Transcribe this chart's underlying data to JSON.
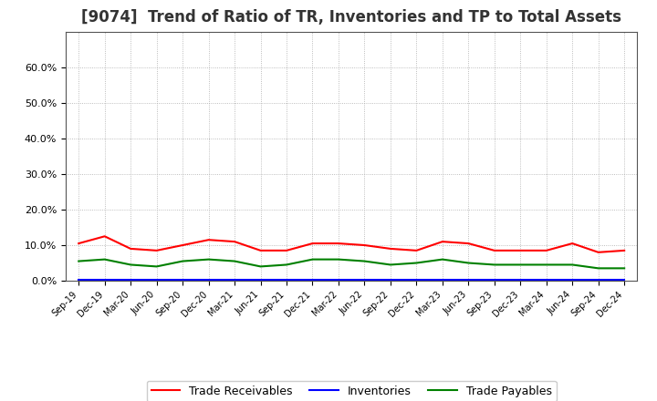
{
  "title": "[9074]  Trend of Ratio of TR, Inventories and TP to Total Assets",
  "x_labels": [
    "Sep-19",
    "Dec-19",
    "Mar-20",
    "Jun-20",
    "Sep-20",
    "Dec-20",
    "Mar-21",
    "Jun-21",
    "Sep-21",
    "Dec-21",
    "Mar-22",
    "Jun-22",
    "Sep-22",
    "Dec-22",
    "Mar-23",
    "Jun-23",
    "Sep-23",
    "Dec-23",
    "Mar-24",
    "Jun-24",
    "Sep-24",
    "Dec-24"
  ],
  "trade_receivables": [
    10.5,
    12.5,
    9.0,
    8.5,
    10.0,
    11.5,
    11.0,
    8.5,
    8.5,
    10.5,
    10.5,
    10.0,
    9.0,
    8.5,
    11.0,
    10.5,
    8.5,
    8.5,
    8.5,
    10.5,
    8.0,
    8.5
  ],
  "inventories": [
    0.3,
    0.3,
    0.3,
    0.3,
    0.3,
    0.3,
    0.3,
    0.3,
    0.3,
    0.3,
    0.3,
    0.3,
    0.3,
    0.3,
    0.3,
    0.3,
    0.3,
    0.3,
    0.3,
    0.3,
    0.3,
    0.3
  ],
  "trade_payables": [
    5.5,
    6.0,
    4.5,
    4.0,
    5.5,
    6.0,
    5.5,
    4.0,
    4.5,
    6.0,
    6.0,
    5.5,
    4.5,
    5.0,
    6.0,
    5.0,
    4.5,
    4.5,
    4.5,
    4.5,
    3.5,
    3.5
  ],
  "ylim": [
    0,
    70
  ],
  "yticks": [
    0,
    10,
    20,
    30,
    40,
    50,
    60
  ],
  "ytick_labels": [
    "0.0%",
    "10.0%",
    "20.0%",
    "30.0%",
    "40.0%",
    "50.0%",
    "60.0%"
  ],
  "tr_color": "#ff0000",
  "inv_color": "#0000ff",
  "tp_color": "#008000",
  "bg_color": "#ffffff",
  "grid_color": "#aaaaaa",
  "title_fontsize": 12,
  "title_color": "#333333",
  "legend_labels": [
    "Trade Receivables",
    "Inventories",
    "Trade Payables"
  ]
}
